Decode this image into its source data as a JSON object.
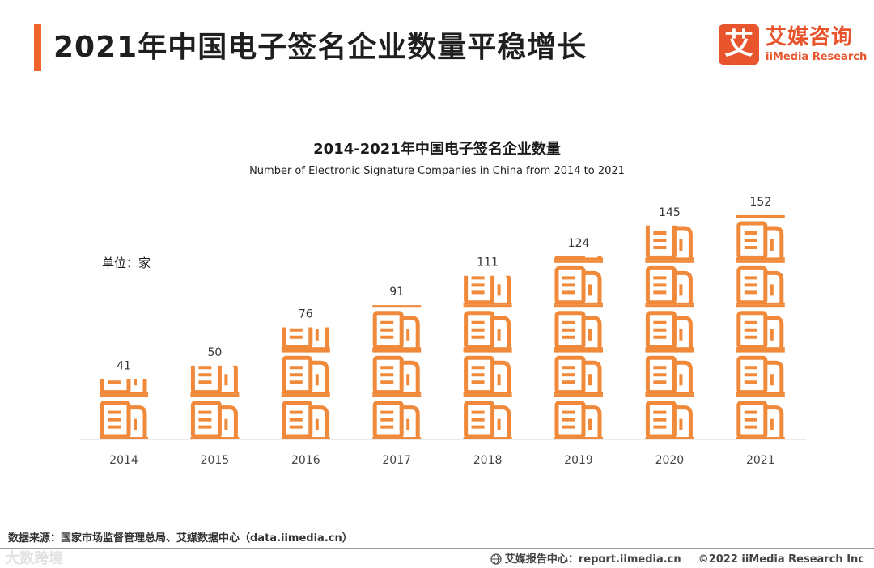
{
  "header": {
    "title": "2021年中国电子签名企业数量平稳增长",
    "accent_color": "#f0642c"
  },
  "logo": {
    "mark": "艾",
    "cn": "艾媒咨询",
    "en": "iiMedia Research",
    "color": "#e8542b"
  },
  "chart_data": {
    "type": "bar",
    "title": "2014-2021年中国电子签名企业数量",
    "subtitle": "Number of Electronic Signature Companies in China from 2014 to 2021",
    "unit_label": "单位：家",
    "categories": [
      "2014",
      "2015",
      "2016",
      "2017",
      "2018",
      "2019",
      "2020",
      "2021"
    ],
    "values": [
      41,
      50,
      76,
      91,
      111,
      124,
      145,
      152
    ],
    "ylim": [
      0,
      152
    ],
    "xlabel": "",
    "ylabel": "",
    "bar_color": "#f08a3a",
    "icon": "building-icon"
  },
  "footer": {
    "source": "数据来源：国家市场监督管理总局、艾媒数据中心（data.iimedia.cn）",
    "watermark": "大数跨境",
    "report_text": "艾媒报告中心：report.iimedia.cn",
    "copyright": "©2022  iiMedia Research  Inc"
  }
}
